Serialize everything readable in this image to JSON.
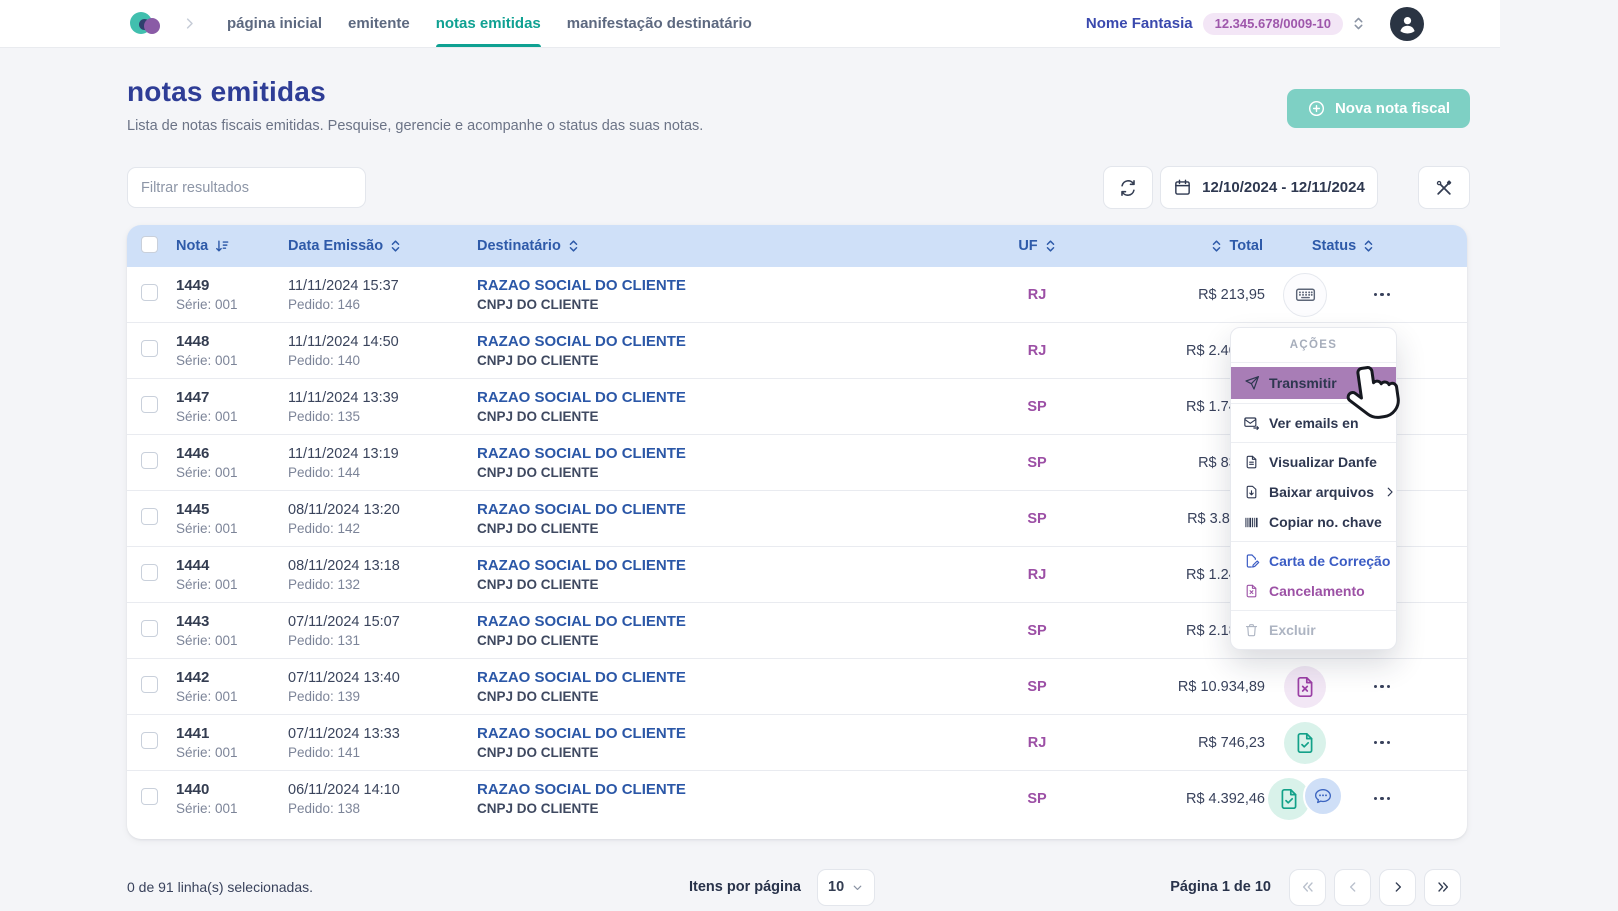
{
  "navbar": {
    "tabs": [
      {
        "id": "pagina-inicial",
        "label": "página inicial",
        "active": false
      },
      {
        "id": "emitente",
        "label": "emitente",
        "active": false
      },
      {
        "id": "notas-emitidas",
        "label": "notas emitidas",
        "active": true
      },
      {
        "id": "manifestacao-destinatario",
        "label": "manifestação destinatário",
        "active": false
      }
    ],
    "company_name": "Nome Fantasia",
    "company_doc": "12.345.678/0009-10"
  },
  "page": {
    "title": "notas emitidas",
    "subtitle": "Lista de notas fiscais emitidas. Pesquise, gerencie e acompanhe o status das suas notas.",
    "new_invoice_label": "Nova nota fiscal"
  },
  "toolbar": {
    "filter_placeholder": "Filtrar resultados",
    "date_range": "12/10/2024 - 12/11/2024"
  },
  "table": {
    "headers": {
      "nota": "Nota",
      "data_emissao": "Data Emissão",
      "destinatario": "Destinatário",
      "uf": "UF",
      "total": "Total",
      "status": "Status"
    },
    "rows": [
      {
        "nota": "1449",
        "serie": "Série: 001",
        "data": "11/11/2024 15:37",
        "pedido": "Pedido: 146",
        "destinatario": "RAZAO SOCIAL DO CLIENTE",
        "doc": "CNPJ DO CLIENTE",
        "uf": "RJ",
        "total": "R$ 213,95",
        "status": [
          "typed"
        ]
      },
      {
        "nota": "1448",
        "serie": "Série: 001",
        "data": "11/11/2024 14:50",
        "pedido": "Pedido: 140",
        "destinatario": "RAZAO SOCIAL DO CLIENTE",
        "doc": "CNPJ DO CLIENTE",
        "uf": "RJ",
        "total": "R$ 2.402,37",
        "status": []
      },
      {
        "nota": "1447",
        "serie": "Série: 001",
        "data": "11/11/2024 13:39",
        "pedido": "Pedido: 135",
        "destinatario": "RAZAO SOCIAL DO CLIENTE",
        "doc": "CNPJ DO CLIENTE",
        "uf": "SP",
        "total": "R$ 1.749,00",
        "status": []
      },
      {
        "nota": "1446",
        "serie": "Série: 001",
        "data": "11/11/2024 13:19",
        "pedido": "Pedido: 144",
        "destinatario": "RAZAO SOCIAL DO CLIENTE",
        "doc": "CNPJ DO CLIENTE",
        "uf": "SP",
        "total": "R$ 830,00",
        "status": []
      },
      {
        "nota": "1445",
        "serie": "Série: 001",
        "data": "08/11/2024 13:20",
        "pedido": "Pedido: 142",
        "destinatario": "RAZAO SOCIAL DO CLIENTE",
        "doc": "CNPJ DO CLIENTE",
        "uf": "SP",
        "total": "R$ 3.811,74",
        "status": []
      },
      {
        "nota": "1444",
        "serie": "Série: 001",
        "data": "08/11/2024 13:18",
        "pedido": "Pedido: 132",
        "destinatario": "RAZAO SOCIAL DO CLIENTE",
        "doc": "CNPJ DO CLIENTE",
        "uf": "RJ",
        "total": "R$ 1.243,78",
        "status": []
      },
      {
        "nota": "1443",
        "serie": "Série: 001",
        "data": "07/11/2024 15:07",
        "pedido": "Pedido: 131",
        "destinatario": "RAZAO SOCIAL DO CLIENTE",
        "doc": "CNPJ DO CLIENTE",
        "uf": "SP",
        "total": "R$ 2.186,56",
        "status": []
      },
      {
        "nota": "1442",
        "serie": "Série: 001",
        "data": "07/11/2024 13:40",
        "pedido": "Pedido: 139",
        "destinatario": "RAZAO SOCIAL DO CLIENTE",
        "doc": "CNPJ DO CLIENTE",
        "uf": "SP",
        "total": "R$ 10.934,89",
        "status": [
          "cancelled"
        ]
      },
      {
        "nota": "1441",
        "serie": "Série: 001",
        "data": "07/11/2024 13:33",
        "pedido": "Pedido: 141",
        "destinatario": "RAZAO SOCIAL DO CLIENTE",
        "doc": "CNPJ DO CLIENTE",
        "uf": "RJ",
        "total": "R$ 746,23",
        "status": [
          "authorized"
        ]
      },
      {
        "nota": "1440",
        "serie": "Série: 001",
        "data": "06/11/2024 14:10",
        "pedido": "Pedido: 138",
        "destinatario": "RAZAO SOCIAL DO CLIENTE",
        "doc": "CNPJ DO CLIENTE",
        "uf": "SP",
        "total": "R$ 4.392,46",
        "status": [
          "authorized",
          "message"
        ]
      }
    ]
  },
  "actions_menu": {
    "title": "AÇÕES",
    "items": [
      {
        "label": "Transmitir",
        "icon": "send",
        "style": "highlight"
      },
      {
        "label": "Ver emails en",
        "icon": "mail",
        "divider_before": true
      },
      {
        "label": "Visualizar Danfe",
        "icon": "doc",
        "divider_before": true
      },
      {
        "label": "Baixar arquivos",
        "icon": "download",
        "submenu": true
      },
      {
        "label": "Copiar no. chave",
        "icon": "barcode"
      },
      {
        "label": "Carta de Correção",
        "icon": "doc_edit",
        "style": "blue",
        "divider_before": true
      },
      {
        "label": "Cancelamento",
        "icon": "doc_x",
        "style": "purple"
      },
      {
        "label": "Excluir",
        "icon": "trash",
        "style": "disabled",
        "divider_before": true
      }
    ]
  },
  "footer": {
    "selection": "0 de 91 linha(s) selecionadas.",
    "per_page_label": "Itens por página",
    "per_page_value": "10",
    "page_info": "Página 1 de 10"
  },
  "colors": {
    "accent_teal": "#0fa192",
    "button_teal": "#7ed0c4",
    "header_blue_bg": "#cfe0f8",
    "link_blue": "#2b57a7",
    "uf_purple": "#9c4fa5",
    "menu_highlight": "#a87db6",
    "badge_purple_bg": "#f3e6f6",
    "title_blue": "#2e3d96"
  }
}
